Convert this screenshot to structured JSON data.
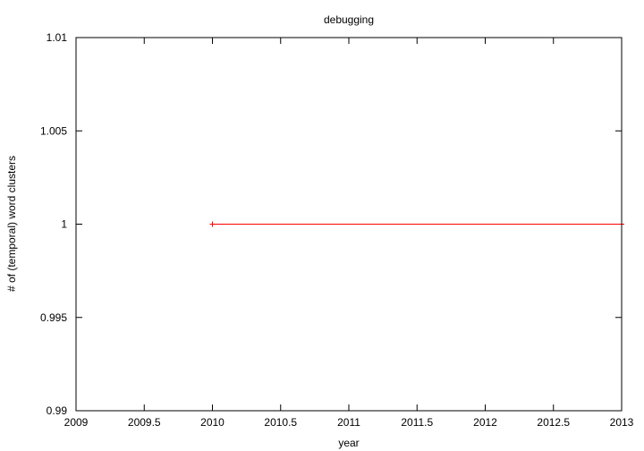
{
  "chart_data": {
    "type": "line",
    "title": "debugging",
    "xlabel": "year",
    "ylabel": "# of (temporal) word clusters",
    "xlim": [
      2009,
      2013
    ],
    "ylim": [
      0.99,
      1.01
    ],
    "x_ticks": [
      2009,
      2009.5,
      2010,
      2010.5,
      2011,
      2011.5,
      2012,
      2012.5,
      2013
    ],
    "x_tick_labels": [
      "2009",
      "2009.5",
      "2010",
      "2010.5",
      "2011",
      "2011.5",
      "2012",
      "2012.5",
      "2013"
    ],
    "y_ticks": [
      0.99,
      0.995,
      1,
      1.005,
      1.01
    ],
    "y_tick_labels": [
      "0.99",
      "0.995",
      "1",
      "1.005",
      "1.01"
    ],
    "grid": false,
    "legend": "none",
    "series": [
      {
        "color": "#ff0000",
        "marker": "plus",
        "x": [
          2010,
          2013
        ],
        "y": [
          1,
          1
        ]
      }
    ]
  }
}
